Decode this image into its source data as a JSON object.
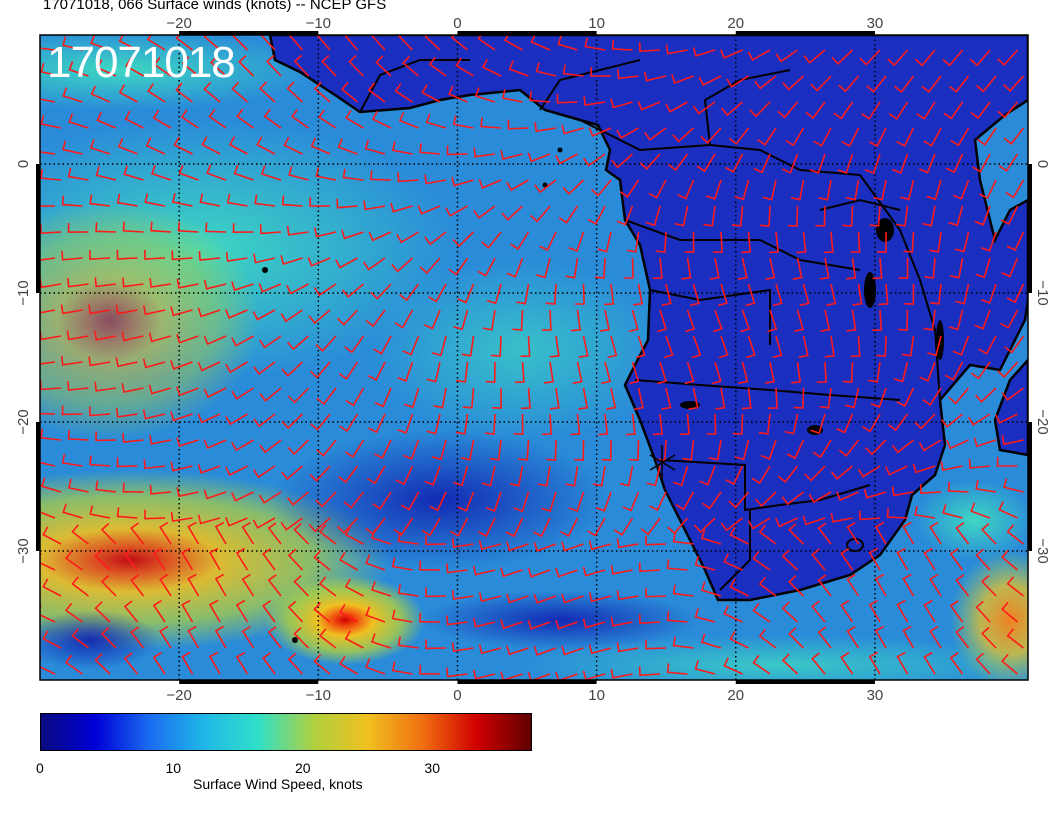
{
  "title": "17071018, 066 Surface winds (knots) -- NCEP GFS",
  "stamp": "17071018",
  "map": {
    "lon_range": [
      -30,
      41
    ],
    "lat_range": [
      -40,
      10
    ],
    "lon_ticks": [
      -20,
      -10,
      0,
      10,
      20,
      30
    ],
    "lat_ticks": [
      0,
      -10,
      -20,
      -30
    ],
    "lon_tick_labels": [
      "−20",
      "−10",
      "0",
      "10",
      "20",
      "30"
    ],
    "lat_tick_labels": [
      "0",
      "−10",
      "−20",
      "−30"
    ],
    "ocean_color": "#2a8cd8",
    "land_color": "#1a2ec0",
    "barb_color": "#ff1a1a",
    "coast_color": "#000000"
  },
  "colorbar": {
    "title": "Surface Wind Speed, knots",
    "range": [
      0,
      38
    ],
    "tick_values": [
      0,
      10,
      20,
      30
    ],
    "tick_labels": [
      "0",
      "10",
      "20",
      "30"
    ],
    "colors": [
      "#0a0a80",
      "#0000d8",
      "#1a6cf0",
      "#20b8e8",
      "#30e0c8",
      "#b0d040",
      "#f0c020",
      "#f07010",
      "#d00000",
      "#600000"
    ]
  }
}
